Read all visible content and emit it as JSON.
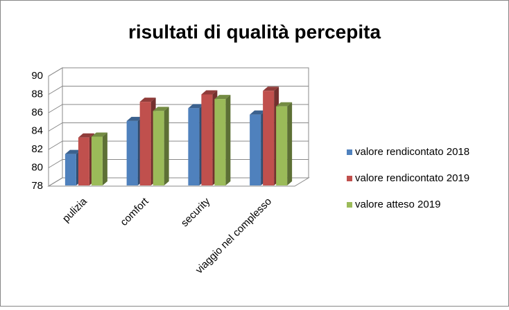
{
  "chart_data": {
    "type": "bar3d",
    "title": "risultati di qualità percepita",
    "categories": [
      "pulizia",
      "comfort",
      "security",
      "viaggio nel complesso"
    ],
    "series": [
      {
        "name": "valore rendicontato 2018",
        "color": "#4f81bd",
        "values": [
          81.5,
          85.1,
          86.5,
          85.8
        ]
      },
      {
        "name": "valore rendicontato 2019",
        "color": "#c0504d",
        "values": [
          83.3,
          87.2,
          88.0,
          88.4
        ]
      },
      {
        "name": "valore atteso 2019",
        "color": "#9bbb59",
        "values": [
          83.4,
          86.2,
          87.5,
          86.7
        ]
      }
    ],
    "ylim": [
      78,
      90
    ],
    "yticks": [
      78,
      80,
      82,
      84,
      86,
      88,
      90
    ],
    "grid": true,
    "legend": "right"
  }
}
